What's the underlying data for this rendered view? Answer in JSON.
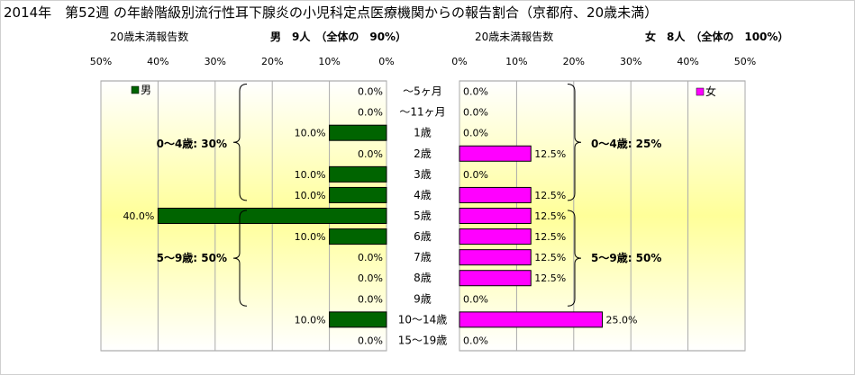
{
  "title": "2014年　第52週 の年齢階級別流行性耳下腺炎の小児科定点医療機関からの報告割合（京都府、20歳未満）",
  "header": {
    "male_caption": "20歳未満報告数",
    "male_summary": "男　9人　（全体の　90%）",
    "female_caption": "20歳未満報告数",
    "female_summary": "女　8人　（全体の　100%）"
  },
  "chart_data": {
    "type": "bar",
    "categories": [
      "～5ヶ月",
      "～11ヶ月",
      "1歳",
      "2歳",
      "3歳",
      "4歳",
      "5歳",
      "6歳",
      "7歳",
      "8歳",
      "9歳",
      "10～14歳",
      "15～19歳"
    ],
    "series": [
      {
        "name": "男",
        "color": "#006400",
        "values": [
          0.0,
          0.0,
          10.0,
          0.0,
          10.0,
          10.0,
          40.0,
          10.0,
          0.0,
          0.0,
          0.0,
          10.0,
          0.0
        ],
        "labels": [
          "0.0%",
          "0.0%",
          "10.0%",
          "0.0%",
          "10.0%",
          "10.0%",
          "40.0%",
          "10.0%",
          "0.0%",
          "0.0%",
          "0.0%",
          "10.0%",
          "0.0%"
        ]
      },
      {
        "name": "女",
        "color": "#ff00ff",
        "values": [
          0.0,
          0.0,
          0.0,
          12.5,
          0.0,
          12.5,
          12.5,
          12.5,
          12.5,
          12.5,
          0.0,
          25.0,
          0.0
        ],
        "labels": [
          "0.0%",
          "0.0%",
          "0.0%",
          "12.5%",
          "0.0%",
          "12.5%",
          "12.5%",
          "12.5%",
          "12.5%",
          "12.5%",
          "0.0%",
          "25.0%",
          "0.0%"
        ]
      }
    ],
    "left_axis_ticks": [
      "50%",
      "40%",
      "30%",
      "20%",
      "10%",
      "0%"
    ],
    "right_axis_ticks": [
      "0%",
      "10%",
      "20%",
      "30%",
      "40%",
      "50%"
    ],
    "xlim": [
      0,
      50
    ],
    "grid": true,
    "group_annotations": {
      "male": [
        "0～4歳: 30%",
        "5～9歳: 50%"
      ],
      "female": [
        "0～4歳: 25%",
        "5～9歳: 50%"
      ]
    }
  }
}
